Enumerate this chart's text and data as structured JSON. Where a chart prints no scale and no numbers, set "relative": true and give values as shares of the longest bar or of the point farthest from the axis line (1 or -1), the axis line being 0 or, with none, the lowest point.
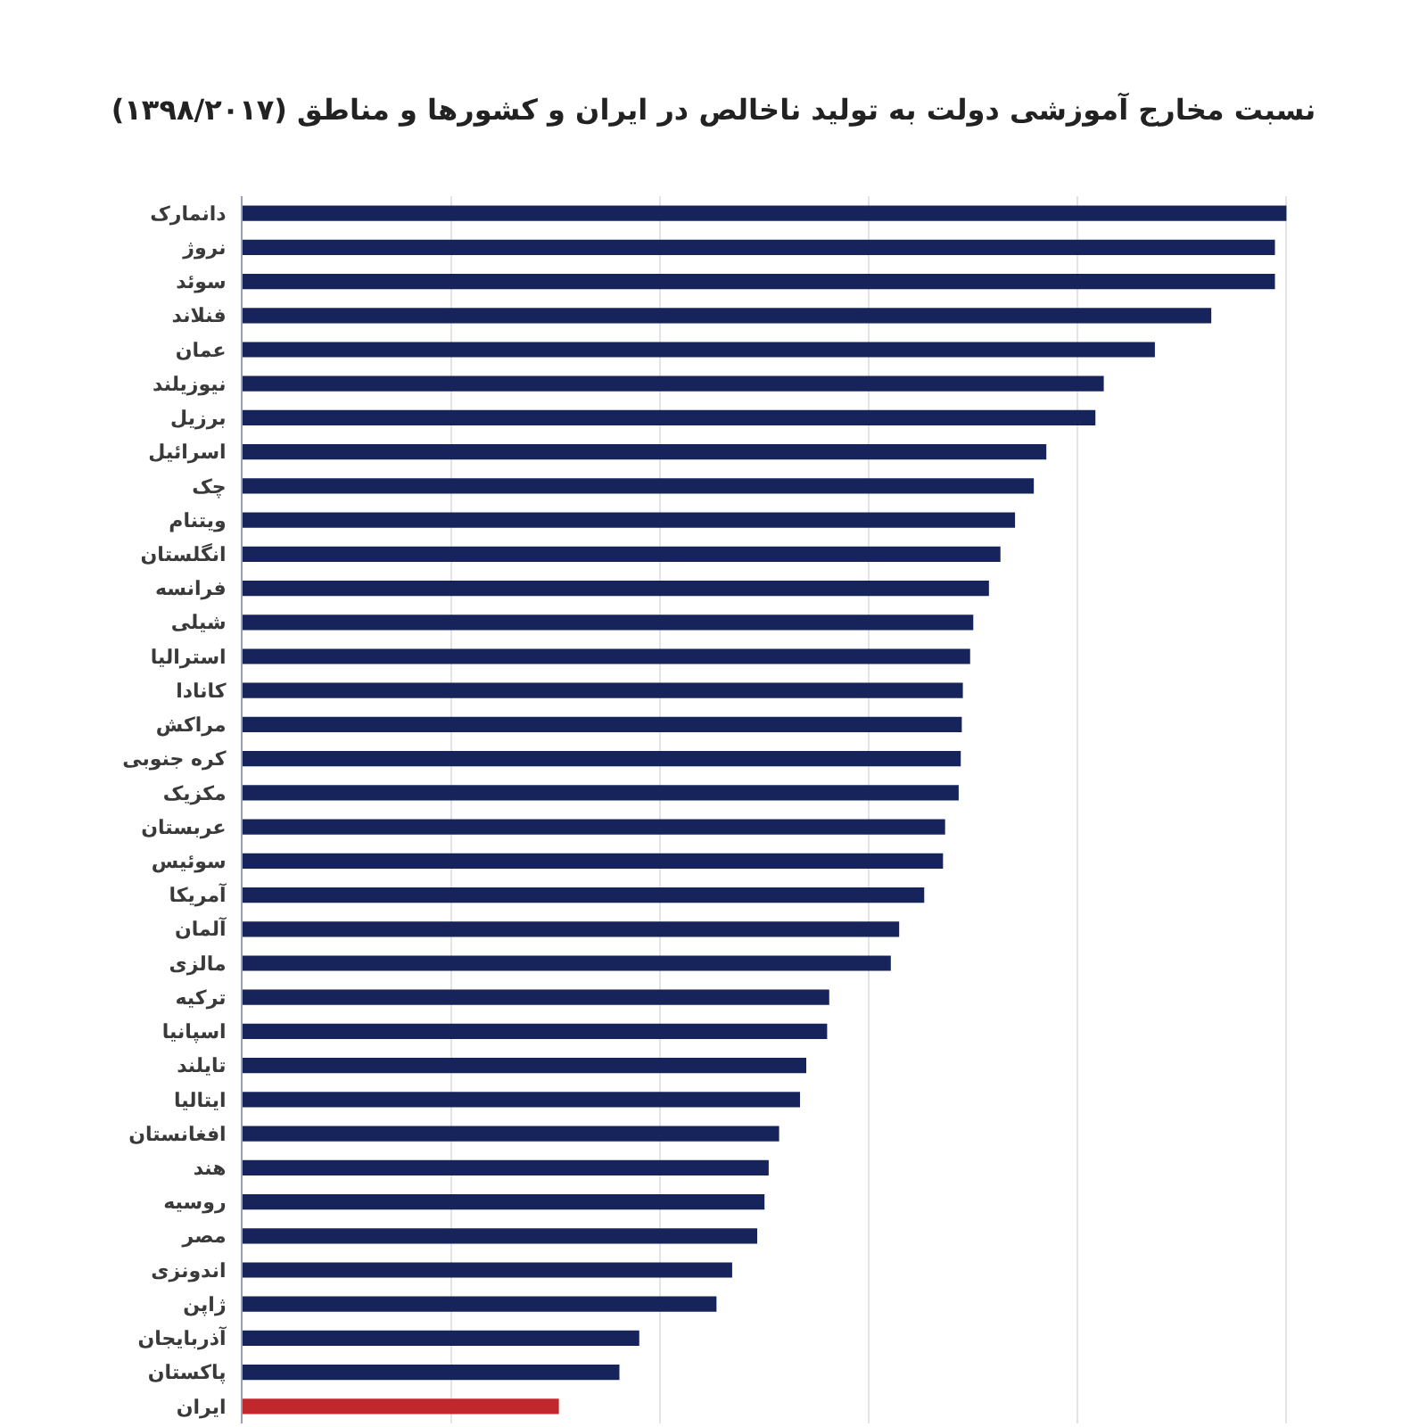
{
  "chart_data": {
    "type": "bar",
    "orientation": "horizontal",
    "relative": true,
    "grid": "x",
    "title": "نسبت مخارج آموزشی دولت به تولید ناخالص در ایران و کشورها و مناطق (۱۳۹۸/۲۰۱۷)",
    "categories": [
      "دانمارک",
      "نروژ",
      "سوئد",
      "فنلاند",
      "عمان",
      "نیوزیلند",
      "برزیل",
      "اسرائیل",
      "چک",
      "ویتنام",
      "انگلستان",
      "فرانسه",
      "شیلی",
      "استرالیا",
      "کانادا",
      "مراکش",
      "کره جنوبی",
      "مکزیک",
      "عربستان",
      "سوئیس",
      "آمریکا",
      "آلمان",
      "مالزی",
      "ترکیه",
      "اسپانیا",
      "تایلند",
      "ایتالیا",
      "افغانستان",
      "هند",
      "روسیه",
      "مصر",
      "اندونزی",
      "ژاپن",
      "آذربایجان",
      "پاکستان",
      "ایران"
    ],
    "values": [
      1.0,
      0.989,
      0.989,
      0.928,
      0.874,
      0.825,
      0.817,
      0.77,
      0.758,
      0.74,
      0.726,
      0.715,
      0.7,
      0.697,
      0.69,
      0.689,
      0.688,
      0.686,
      0.673,
      0.671,
      0.653,
      0.629,
      0.621,
      0.562,
      0.56,
      0.54,
      0.534,
      0.514,
      0.504,
      0.5,
      0.493,
      0.469,
      0.454,
      0.38,
      0.361,
      0.303
    ],
    "colors": [
      "#17245c",
      "#17245c",
      "#17245c",
      "#17245c",
      "#17245c",
      "#17245c",
      "#17245c",
      "#17245c",
      "#17245c",
      "#17245c",
      "#17245c",
      "#17245c",
      "#17245c",
      "#17245c",
      "#17245c",
      "#17245c",
      "#17245c",
      "#17245c",
      "#17245c",
      "#17245c",
      "#17245c",
      "#17245c",
      "#17245c",
      "#17245c",
      "#17245c",
      "#17245c",
      "#17245c",
      "#17245c",
      "#17245c",
      "#17245c",
      "#17245c",
      "#17245c",
      "#17245c",
      "#17245c",
      "#17245c",
      "#c0282d"
    ]
  }
}
